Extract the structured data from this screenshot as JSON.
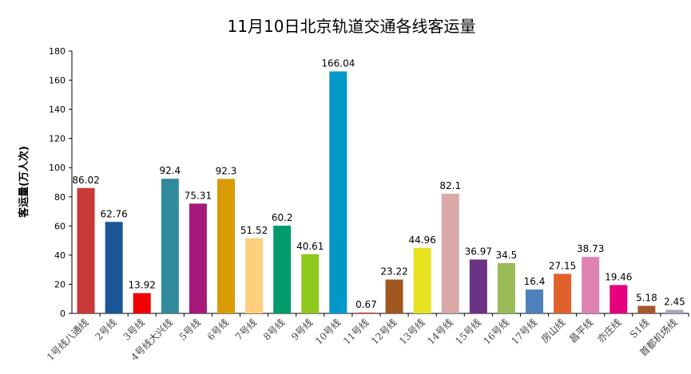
{
  "chart_data": {
    "type": "bar",
    "title": "11月10日北京轨道交通各线客运量",
    "y_label": "客运量(万人次)",
    "categories": [
      "1号线八通线",
      "2号线",
      "3号线",
      "4号线大兴线",
      "5号线",
      "6号线",
      "7号线",
      "8号线",
      "9号线",
      "10号线",
      "11号线",
      "12号线",
      "13号线",
      "14号线",
      "15号线",
      "16号线",
      "17号线",
      "房山线",
      "昌平线",
      "亦庄线",
      "S1线",
      "首都机场线"
    ],
    "values": [
      86.02,
      62.76,
      13.92,
      92.4,
      75.31,
      92.3,
      51.52,
      60.2,
      40.61,
      166.04,
      0.67,
      23.22,
      44.96,
      82.1,
      36.97,
      34.5,
      16.4,
      27.15,
      38.73,
      19.46,
      5.18,
      2.45
    ],
    "colors": [
      "#c9393a",
      "#1a5596",
      "#f00000",
      "#318a9c",
      "#a5197a",
      "#d99b06",
      "#fecf7c",
      "#009b6b",
      "#8ec81d",
      "#0098c9",
      "#e8543d",
      "#a0561f",
      "#e8e221",
      "#dba8a8",
      "#6b3285",
      "#9bbb58",
      "#4f81bd",
      "#e0612c",
      "#de82b1",
      "#e6007e",
      "#a5572b",
      "#a5a5c3"
    ],
    "ylim": [
      0,
      180
    ],
    "yticks": [
      0,
      20,
      40,
      60,
      80,
      100,
      120,
      140,
      160,
      180
    ],
    "grid": false
  }
}
